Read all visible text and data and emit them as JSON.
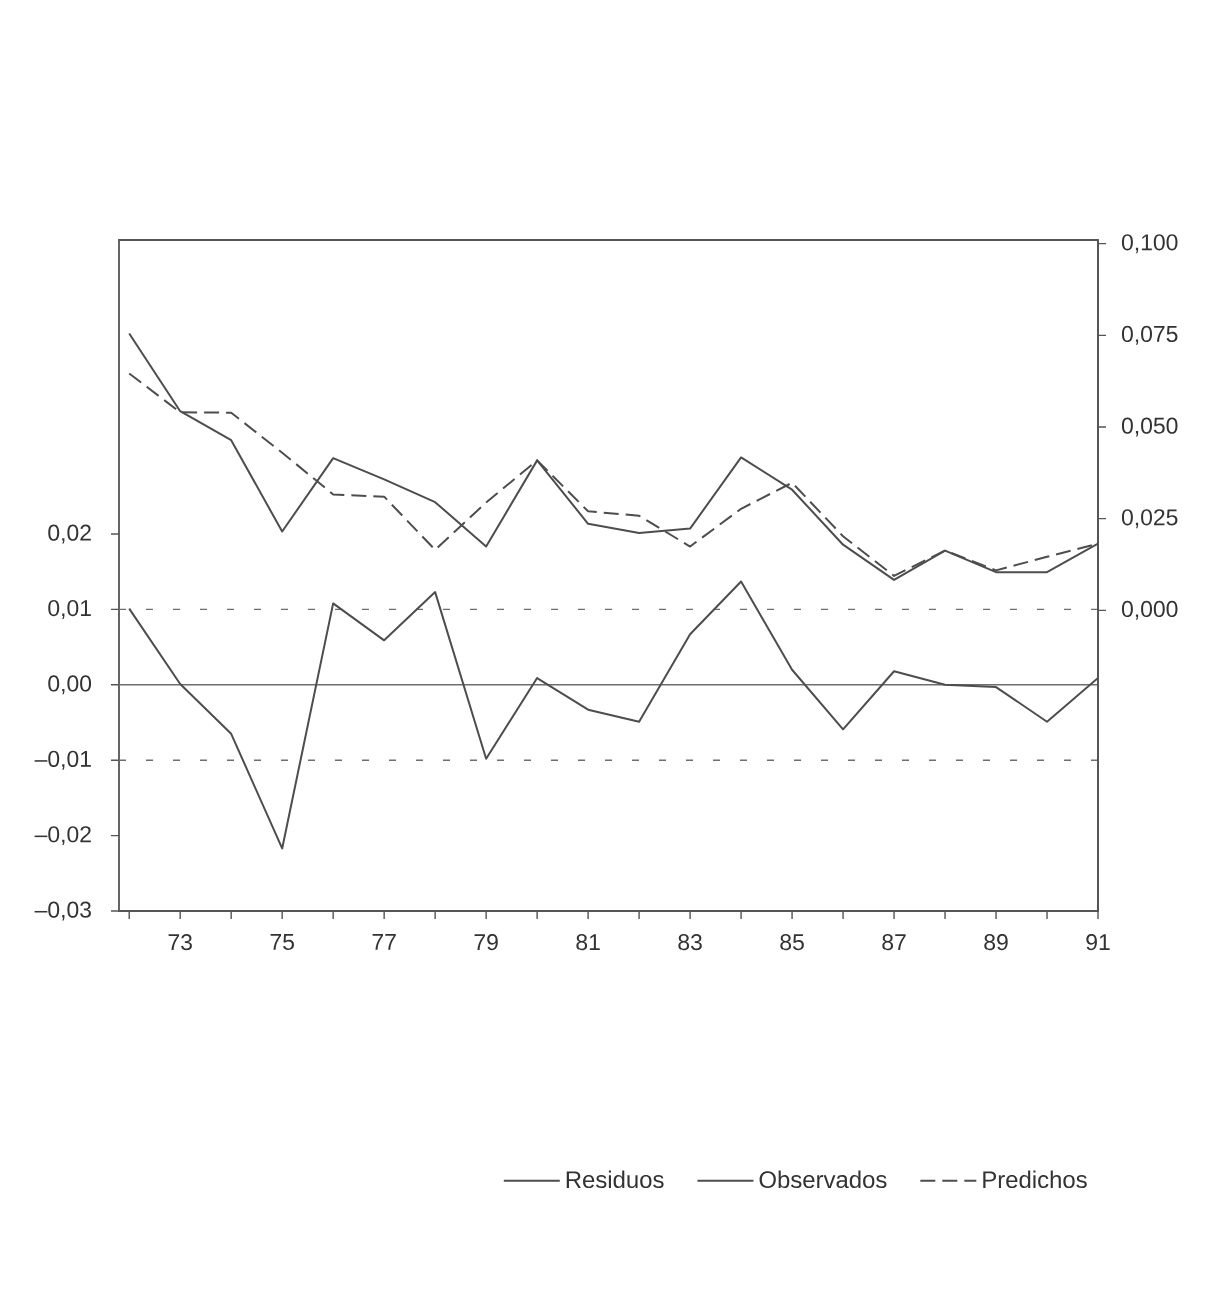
{
  "chart_data": {
    "type": "line",
    "x": [
      72,
      73,
      74,
      75,
      76,
      77,
      78,
      79,
      80,
      81,
      82,
      83,
      84,
      85,
      86,
      87,
      88,
      89,
      90,
      91
    ],
    "xlim": [
      71.8,
      91
    ],
    "xticks": [
      {
        "value": 72,
        "label": null
      },
      73,
      {
        "value": 74,
        "label": null
      },
      75,
      {
        "value": 76,
        "label": null
      },
      77,
      {
        "value": 78,
        "label": null
      },
      79,
      {
        "value": 80,
        "label": null
      },
      81,
      {
        "value": 82,
        "label": null
      },
      83,
      {
        "value": 84,
        "label": null
      },
      85,
      {
        "value": 86,
        "label": null
      },
      87,
      {
        "value": 88,
        "label": null
      },
      89,
      {
        "value": 90,
        "label": null
      },
      91
    ],
    "ylim": [
      -0.03,
      0.059
    ],
    "yticks": [
      {
        "value": -0.03,
        "label": "–0,03"
      },
      {
        "value": -0.02,
        "label": "–0,02"
      },
      {
        "value": -0.01,
        "label": "–0,01"
      },
      {
        "value": 0,
        "label": "0,00"
      },
      {
        "value": 0.01,
        "label": "0,01"
      },
      {
        "value": 0.02,
        "label": "0,02"
      }
    ],
    "y2lim": [
      -0.082,
      0.101
    ],
    "y2ticks": [
      {
        "value": 0,
        "label": "0,000"
      },
      {
        "value": 0.025,
        "label": "0,025"
      },
      {
        "value": 0.05,
        "label": "0,050"
      },
      {
        "value": 0.075,
        "label": "0,075"
      },
      {
        "value": 0.1,
        "label": "0,100"
      }
    ],
    "series": [
      {
        "name": "Residuos",
        "color": "#4d4d4d",
        "line_style": "solid",
        "values": [
          0.0101,
          0.0001,
          -0.0065,
          -0.0217,
          0.0108,
          0.0059,
          0.0123,
          -0.0098,
          0.0009,
          -0.0033,
          -0.0049,
          0.0067,
          0.0137,
          0.002,
          -0.0059,
          0.0018,
          0.0,
          -0.0003,
          -0.0049,
          0.0009
        ]
      },
      {
        "name": "Observados",
        "color": "#4d4d4d",
        "line_style": "solid",
        "axis": "y2",
        "values": [
          0.0755,
          0.0543,
          0.0464,
          0.0215,
          0.0415,
          0.0357,
          0.0295,
          0.0174,
          0.0409,
          0.0236,
          0.0211,
          0.0223,
          0.0417,
          0.0329,
          0.0179,
          0.0083,
          0.0163,
          0.0104,
          0.0104,
          0.0182
        ]
      },
      {
        "name": "Predichos",
        "color": "#4d4d4d",
        "line_style": "dashed",
        "axis": "y2",
        "values": [
          0.0646,
          0.054,
          0.0539,
          0.043,
          0.0316,
          0.031,
          0.0165,
          0.0294,
          0.0409,
          0.027,
          0.0258,
          0.0174,
          0.0277,
          0.0348,
          0.0202,
          0.0094,
          0.0163,
          0.0109,
          0.0146,
          0.0182
        ]
      }
    ],
    "ref_lines": [
      {
        "axis": "y",
        "value": 0,
        "color": "#6e6e6e",
        "line_style": "solid"
      },
      {
        "axis": "y",
        "value": 0.01,
        "color": "#6e6e6e",
        "line_style": "dashed"
      },
      {
        "axis": "y",
        "value": -0.01,
        "color": "#6e6e6e",
        "line_style": "dashed"
      }
    ],
    "legend": "bottom"
  }
}
